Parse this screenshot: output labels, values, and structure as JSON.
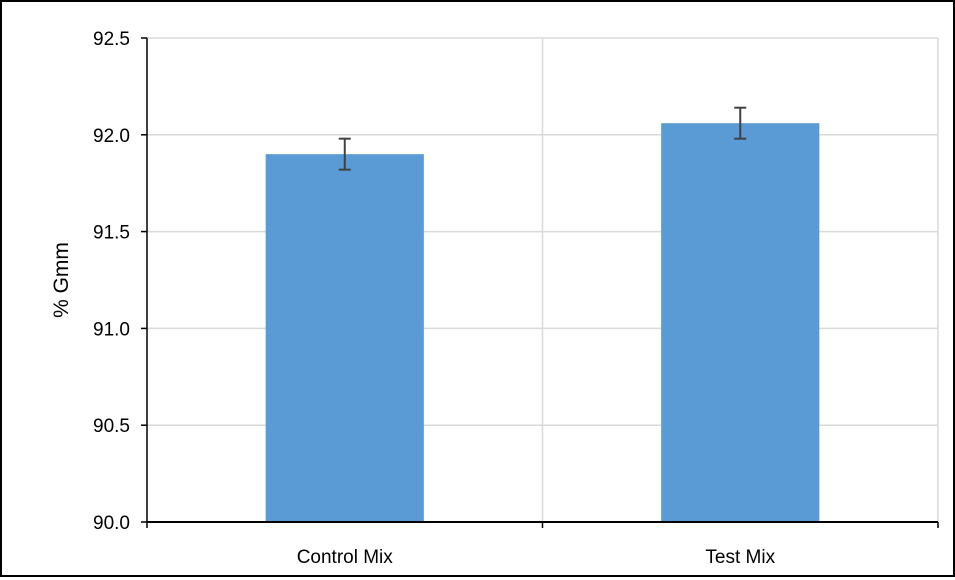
{
  "chart_data": {
    "type": "bar",
    "title": "",
    "xlabel": "",
    "ylabel": "% Gmm",
    "categories": [
      "Control Mix",
      "Test Mix"
    ],
    "values": [
      91.9,
      92.06
    ],
    "error_bars": [
      0.08,
      0.08
    ],
    "ylim": [
      90.0,
      92.5
    ],
    "yticks": [
      "90.0",
      "90.5",
      "91.0",
      "91.5",
      "92.0",
      "92.5"
    ],
    "grid": true,
    "legend": "none",
    "colors": {
      "bar": "#5B9BD5",
      "error_bar": "#404040",
      "grid": "#D9D9D9",
      "axis": "#000000"
    }
  }
}
